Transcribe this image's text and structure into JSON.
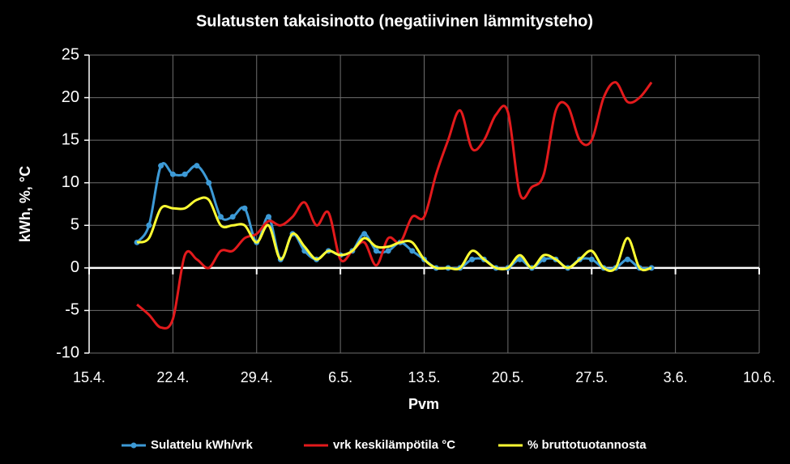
{
  "chart_data": {
    "type": "line",
    "title": "Sulatusten takaisinotto (negatiivinen lämmitysteho)",
    "xlabel": "Pvm",
    "ylabel": "kWh, %, °C",
    "x": [
      "19.4.",
      "20.4.",
      "21.4.",
      "22.4.",
      "23.4.",
      "24.4.",
      "25.4.",
      "26.4.",
      "27.4.",
      "28.4.",
      "29.4.",
      "30.4.",
      "1.5.",
      "2.5.",
      "3.5.",
      "4.5.",
      "5.5.",
      "6.5.",
      "7.5.",
      "8.5.",
      "9.5.",
      "10.5.",
      "11.5.",
      "12.5.",
      "13.5.",
      "14.5.",
      "15.5.",
      "16.5.",
      "17.5.",
      "18.5.",
      "19.5.",
      "20.5.",
      "21.5.",
      "22.5.",
      "23.5.",
      "24.5.",
      "25.5.",
      "26.5.",
      "27.5.",
      "28.5.",
      "29.5.",
      "30.5.",
      "31.5.",
      "1.6."
    ],
    "series": [
      {
        "name": "Sulattelu kWh/vrk",
        "color": "#3d9ad6",
        "markers": true,
        "values": [
          3,
          5,
          12,
          11,
          11,
          12,
          10,
          6,
          6,
          7,
          3,
          6,
          1,
          4,
          2,
          1,
          2,
          1.5,
          2,
          4,
          2,
          2,
          3,
          2,
          1,
          0,
          0,
          0,
          1,
          1,
          0,
          0,
          1,
          0,
          1,
          1,
          0,
          1,
          1,
          0,
          0,
          1,
          0,
          0
        ]
      },
      {
        "name": "vrk keskilämpötila °C",
        "color": "#e31a1c",
        "markers": false,
        "values": [
          -4.3,
          -5.5,
          -7,
          -6,
          1.5,
          1,
          0,
          2,
          2,
          3.5,
          4,
          5.5,
          5,
          6,
          7.7,
          5,
          6.5,
          1,
          2,
          3,
          0.3,
          3.5,
          3,
          6,
          6,
          11,
          15,
          18.5,
          14,
          15,
          18,
          18.3,
          8.7,
          9.5,
          11,
          18.5,
          19,
          15,
          15,
          20,
          21.8,
          19.5,
          20,
          21.8
        ]
      },
      {
        "name": "% bruttotuotannosta",
        "color": "#ffff33",
        "markers": false,
        "values": [
          3,
          3.5,
          7,
          7,
          7,
          8,
          8,
          5,
          5,
          5,
          3,
          5,
          1,
          4,
          2.5,
          1,
          2,
          1.5,
          2,
          3.5,
          2.5,
          2.5,
          3,
          3,
          1,
          0,
          0,
          0,
          2,
          1,
          0,
          0,
          1.5,
          0,
          1.5,
          1,
          0,
          1,
          2,
          0,
          0,
          3.5,
          0,
          0
        ]
      }
    ],
    "xlim": [
      "15.4.",
      "10.6."
    ],
    "xticks": [
      "15.4.",
      "22.4.",
      "29.4.",
      "6.5.",
      "13.5.",
      "20.5.",
      "27.5.",
      "3.6.",
      "10.6."
    ],
    "ylim": [
      -10,
      25
    ],
    "yticks": [
      -10,
      -5,
      0,
      5,
      10,
      15,
      20,
      25
    ],
    "grid": true,
    "legend": "bottom"
  }
}
